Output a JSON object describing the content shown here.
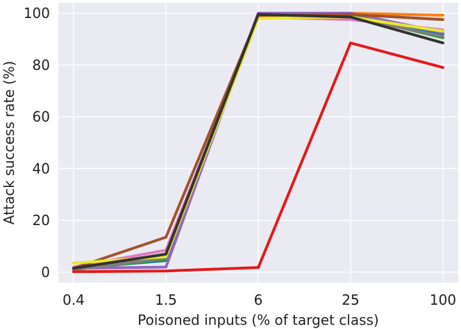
{
  "chart_data": {
    "type": "line",
    "title": "",
    "xlabel": "Poisoned inputs (% of target class)",
    "ylabel": "Attack success rate (%)",
    "x": [
      "0.4",
      "1.5",
      "6",
      "25",
      "100"
    ],
    "yticks": [
      0,
      20,
      40,
      60,
      80,
      100
    ],
    "ylim": [
      -4,
      104
    ],
    "grid": true,
    "background": "#EAEAF2",
    "series": [
      {
        "color": "#1f77b4",
        "values": [
          1.5,
          4.5,
          99.5,
          99.5,
          92.0
        ]
      },
      {
        "color": "#ff7f0e",
        "values": [
          1.0,
          6.0,
          99.8,
          100.0,
          99.2
        ]
      },
      {
        "color": "#2ca02c",
        "values": [
          1.0,
          5.0,
          99.5,
          99.0,
          90.5
        ]
      },
      {
        "color": "#9467bd",
        "values": [
          1.5,
          2.0,
          100.0,
          100.0,
          92.5
        ]
      },
      {
        "color": "#e377c2",
        "values": [
          2.0,
          8.5,
          98.5,
          97.5,
          93.5
        ]
      },
      {
        "color": "#7f7f7f",
        "values": [
          1.0,
          5.5,
          99.0,
          98.5,
          91.0
        ]
      },
      {
        "color": "#a0522d",
        "values": [
          1.5,
          13.5,
          99.0,
          99.5,
          97.5
        ]
      },
      {
        "color": "#e8e82a",
        "values": [
          3.5,
          6.0,
          98.0,
          98.5,
          93.0
        ]
      },
      {
        "color": "#333333",
        "values": [
          1.5,
          7.0,
          99.5,
          98.5,
          88.5
        ]
      },
      {
        "color": "#e31a1c",
        "values": [
          0.2,
          0.5,
          1.8,
          88.5,
          79.0
        ]
      }
    ]
  }
}
